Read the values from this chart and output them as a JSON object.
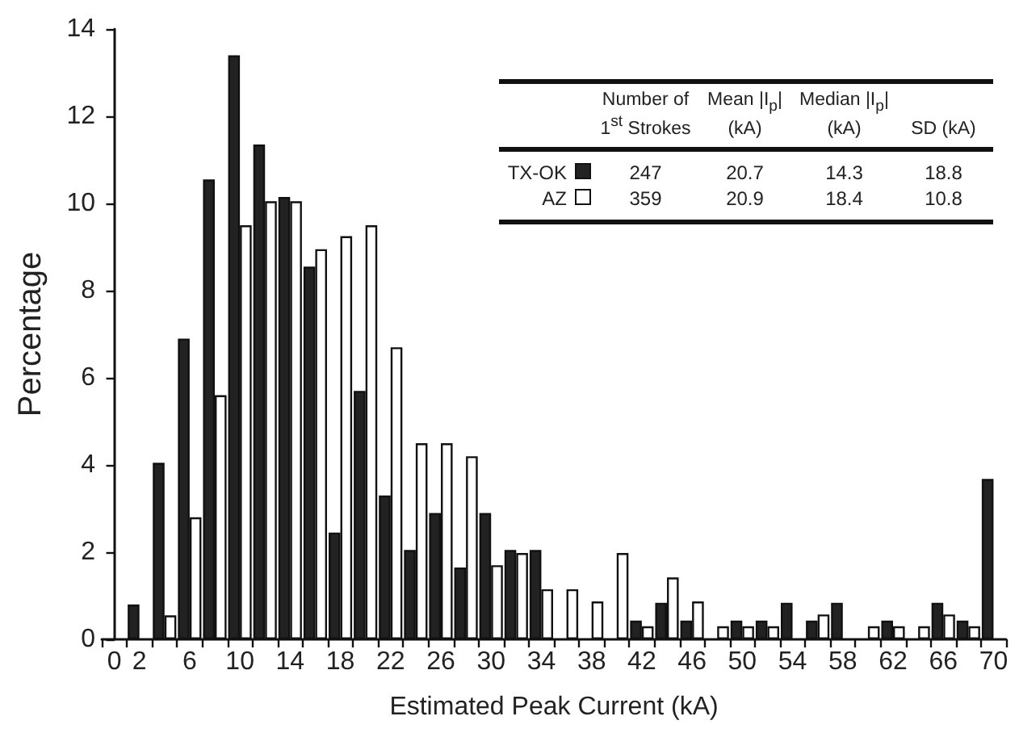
{
  "chart_data": {
    "type": "bar",
    "xlabel": "Estimated Peak Current (kA)",
    "ylabel": "Percentage",
    "x": [
      2,
      4,
      6,
      8,
      10,
      12,
      14,
      16,
      18,
      20,
      22,
      24,
      26,
      28,
      30,
      32,
      34,
      36,
      38,
      40,
      42,
      44,
      46,
      48,
      50,
      52,
      54,
      56,
      58,
      60,
      62,
      64,
      66,
      68,
      70
    ],
    "series": [
      {
        "name": "TX-OK",
        "color": "#222222",
        "values": [
          0.8,
          4.05,
          6.9,
          10.55,
          13.4,
          11.35,
          10.15,
          8.55,
          2.45,
          5.7,
          3.3,
          2.05,
          2.9,
          1.65,
          2.9,
          2.05,
          2.05,
          null,
          null,
          null,
          0.43,
          0.84,
          0.43,
          null,
          0.43,
          0.43,
          0.84,
          0.43,
          0.84,
          null,
          0.43,
          null,
          0.84,
          0.43,
          3.68
        ]
      },
      {
        "name": "AZ",
        "color": "#ffffff",
        "values": [
          null,
          0.55,
          2.8,
          5.6,
          9.5,
          10.05,
          10.05,
          8.95,
          9.25,
          9.5,
          6.7,
          4.5,
          4.5,
          4.2,
          1.7,
          1.98,
          1.15,
          1.15,
          0.87,
          1.98,
          0.3,
          1.42,
          0.87,
          0.3,
          0.3,
          0.3,
          null,
          0.57,
          null,
          0.3,
          0.3,
          0.3,
          0.57,
          0.3,
          null
        ]
      }
    ],
    "xlim": [
      -1,
      71
    ],
    "xticks": [
      {
        "value": -1,
        "label": null
      },
      0,
      {
        "value": 1,
        "label": null
      },
      2,
      {
        "value": 3,
        "label": null
      },
      {
        "value": 5,
        "label": null
      },
      6,
      {
        "value": 7,
        "label": null
      },
      {
        "value": 9,
        "label": null
      },
      10,
      {
        "value": 11,
        "label": null
      },
      {
        "value": 13,
        "label": null
      },
      14,
      {
        "value": 15,
        "label": null
      },
      {
        "value": 17,
        "label": null
      },
      18,
      {
        "value": 19,
        "label": null
      },
      {
        "value": 21,
        "label": null
      },
      22,
      {
        "value": 23,
        "label": null
      },
      {
        "value": 25,
        "label": null
      },
      26,
      {
        "value": 27,
        "label": null
      },
      {
        "value": 29,
        "label": null
      },
      30,
      {
        "value": 31,
        "label": null
      },
      {
        "value": 33,
        "label": null
      },
      34,
      {
        "value": 35,
        "label": null
      },
      {
        "value": 37,
        "label": null
      },
      38,
      {
        "value": 39,
        "label": null
      },
      {
        "value": 41,
        "label": null
      },
      42,
      {
        "value": 43,
        "label": null
      },
      {
        "value": 45,
        "label": null
      },
      46,
      {
        "value": 47,
        "label": null
      },
      {
        "value": 49,
        "label": null
      },
      50,
      {
        "value": 51,
        "label": null
      },
      {
        "value": 53,
        "label": null
      },
      54,
      {
        "value": 55,
        "label": null
      },
      {
        "value": 57,
        "label": null
      },
      58,
      {
        "value": 59,
        "label": null
      },
      {
        "value": 61,
        "label": null
      },
      62,
      {
        "value": 63,
        "label": null
      },
      {
        "value": 65,
        "label": null
      },
      66,
      {
        "value": 67,
        "label": null
      },
      {
        "value": 69,
        "label": null
      },
      70,
      {
        "value": 71,
        "label": null
      }
    ],
    "ylim": [
      0,
      14
    ],
    "yticks": [
      0,
      2,
      4,
      6,
      8,
      10,
      12,
      14
    ],
    "grid": false,
    "legend": "top right",
    "annotations": [
      "Number of 1$^{st}$ Strokes",
      "Mean |I$_{p}$| (kA)",
      "Median |I$_{p}$| (kA)",
      "SD (kA)",
      "247",
      "20.7",
      "14.3",
      "18.8",
      "359",
      "20.9",
      "18.4",
      "10.8"
    ]
  }
}
